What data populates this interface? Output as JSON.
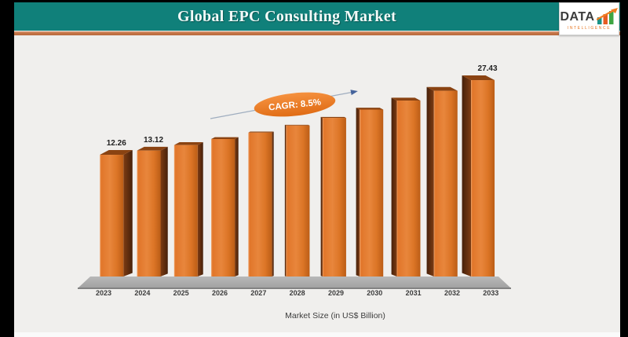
{
  "header": {
    "title": "Global EPC Consulting Market",
    "bg_color": "#10807a",
    "underline_color": "#c57547",
    "text_color": "#f2faf8"
  },
  "logo": {
    "word": "DATA",
    "subtitle": "INTELLIGENCE",
    "accent_color": "#e87722",
    "bar_colors": [
      "#1a9387",
      "#e65c23",
      "#3ea542"
    ]
  },
  "chart_data": {
    "type": "bar",
    "projection": "3d-perspective",
    "title": "Global EPC Consulting Market",
    "categories": [
      "2023",
      "2024",
      "2025",
      "2026",
      "2027",
      "2028",
      "2029",
      "2030",
      "2031",
      "2032",
      "2033"
    ],
    "values": [
      12.26,
      13.12,
      14.24,
      15.46,
      16.78,
      18.21,
      19.76,
      21.45,
      23.28,
      25.27,
      27.43
    ],
    "value_labels_visible": {
      "2023": "12.26",
      "2024": "13.12",
      "2033": "27.43"
    },
    "axis_title": "Market Size (in US$ Billion)",
    "annotation": {
      "text": "CAGR: 8.5%",
      "shape": "ellipse",
      "fill": "#ed7d31",
      "text_color": "#ffffff"
    },
    "bar_front_color": "#e07a2c",
    "bar_side_color": "#5d2b0b",
    "floor_color": "#ababab",
    "background_color": "#f0efed",
    "legend": "none",
    "gridlines": "off",
    "estimate_note": "2025-2032 bars carry no data labels on the chart; values estimated from bar heights at ~8.5% CAGR"
  }
}
